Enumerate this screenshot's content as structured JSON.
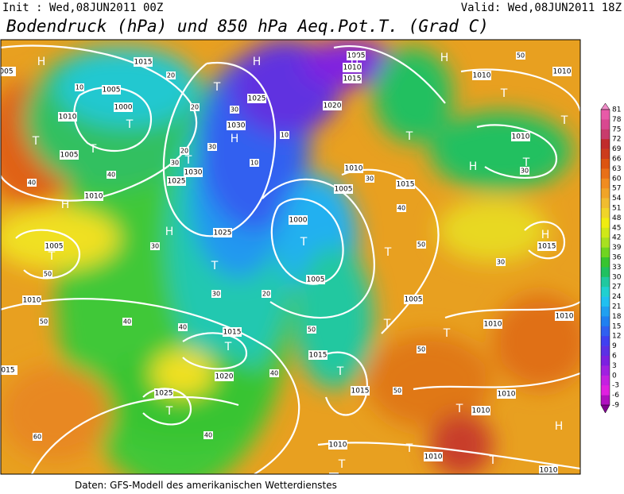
{
  "header": {
    "init": "Init : Wed,08JUN2011 00Z",
    "valid": "Valid: Wed,08JUN2011 18Z",
    "title": "Bodendruck (hPa) und 850 hPa Aeq.Pot.T. (Grad C)"
  },
  "footer": "Daten: GFS-Modell des amerikanischen Wetterdienstes",
  "colorbar": {
    "ticks": [
      81,
      78,
      75,
      72,
      69,
      66,
      63,
      60,
      57,
      54,
      51,
      48,
      45,
      42,
      39,
      36,
      33,
      30,
      27,
      24,
      21,
      18,
      15,
      12,
      9,
      6,
      3,
      0,
      -3,
      -6,
      -9
    ],
    "colors": [
      "#e85aa8",
      "#d84890",
      "#c83c6c",
      "#c02c2c",
      "#cc3c1c",
      "#dc5410",
      "#e87018",
      "#f08c20",
      "#f0a428",
      "#f0bc30",
      "#f0d428",
      "#f0ec10",
      "#d0e818",
      "#a8e020",
      "#70d420",
      "#38c430",
      "#20c060",
      "#20c8a0",
      "#20d0d0",
      "#20c0f0",
      "#20a0f0",
      "#2080f0",
      "#3060f0",
      "#4040f0",
      "#5c30e4",
      "#7c20e0",
      "#a020e0",
      "#c420e0",
      "#e020e0",
      "#b010c0"
    ]
  },
  "map": {
    "pressure_labels": [
      "1015",
      "1005",
      "1000",
      "1010",
      "1005",
      "1010",
      "1005",
      "1010",
      "1025",
      "1030",
      "1030",
      "1025",
      "1020",
      "1005",
      "1010",
      "1015",
      "1010",
      "1005",
      "1015",
      "1000",
      "1005",
      "1025",
      "1015",
      "1020",
      "1015",
      "1015",
      "1025",
      "1010",
      "1010",
      "1010",
      "1015",
      "1010",
      "1005",
      "1010",
      "1010",
      "1010",
      "1010",
      "1010",
      "1010",
      "015",
      "005"
    ],
    "centers": [
      "H",
      "H",
      "H",
      "H",
      "T",
      "T",
      "T",
      "T",
      "H",
      "H",
      "T",
      "T",
      "T",
      "T",
      "T",
      "T",
      "H",
      "T",
      "T",
      "T",
      "H",
      "T",
      "T",
      "H",
      "T",
      "T",
      "T",
      "T",
      "T",
      "T",
      "H",
      "T"
    ],
    "isotherm_labels": [
      "10",
      "20",
      "30",
      "20",
      "30",
      "40",
      "40",
      "50",
      "30",
      "40",
      "50",
      "40",
      "30",
      "20",
      "10",
      "10",
      "20",
      "30",
      "40",
      "50",
      "40",
      "30",
      "50",
      "50",
      "60",
      "40",
      "50",
      "30",
      "40",
      "30",
      "50"
    ]
  }
}
